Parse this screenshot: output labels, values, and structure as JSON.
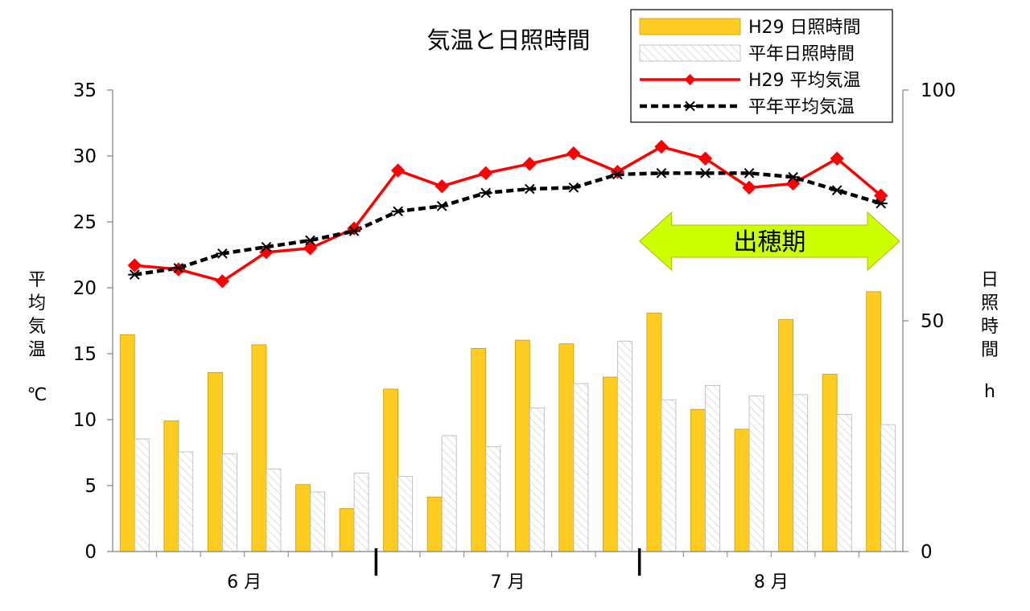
{
  "chart_data": {
    "type": "bar+line",
    "title": "気温と日照時間",
    "y_left": {
      "label_chars": [
        "平",
        "均",
        "気",
        "温"
      ],
      "unit": "℃",
      "range": [
        0,
        35
      ],
      "ticks": [
        0,
        5,
        10,
        15,
        20,
        25,
        30,
        35
      ]
    },
    "y_right": {
      "label_chars": [
        "日",
        "照",
        "時",
        "間"
      ],
      "unit": "h",
      "range": [
        0,
        100
      ],
      "ticks": [
        0,
        50,
        100
      ]
    },
    "months": [
      "6 月",
      "7 月",
      "8 月"
    ],
    "periods_per_month": 6,
    "legend_position": "top-right",
    "grid": false,
    "annotation": {
      "label": "出穂期",
      "from_period": 13,
      "to_period": 18,
      "color": "#ccff00"
    },
    "bar_series": [
      {
        "name": "H29 日照時間",
        "axis": "right",
        "color": "#ffcc22",
        "values": [
          47,
          28.3,
          38.8,
          44.8,
          14.5,
          9.3,
          35.2,
          11.8,
          44,
          45.8,
          45,
          37.8,
          51.7,
          30.8,
          26.5,
          50.3,
          38.4,
          56.3
        ]
      },
      {
        "name": "平年日照時間",
        "axis": "right",
        "color": "#ffffff",
        "pattern": "hatch",
        "values": [
          24.4,
          21.6,
          21.2,
          17.9,
          12.9,
          17,
          16.3,
          25.1,
          22.7,
          31.1,
          36.4,
          45.6,
          32.9,
          36,
          33.7,
          34,
          29.7,
          27.5
        ]
      }
    ],
    "line_series": [
      {
        "name": "H29 平均気温",
        "axis": "left",
        "color": "#ff0000",
        "marker": "diamond",
        "values": [
          21.7,
          21.4,
          20.5,
          22.7,
          23,
          24.5,
          28.9,
          27.7,
          28.7,
          29.4,
          30.2,
          28.8,
          30.7,
          29.8,
          27.6,
          27.9,
          29.8,
          27
        ]
      },
      {
        "name": "平年平均気温",
        "axis": "left",
        "color": "#000000",
        "marker": "asterisk",
        "dashed": true,
        "values": [
          21,
          21.5,
          22.6,
          23.1,
          23.6,
          24.3,
          25.8,
          26.2,
          27.2,
          27.5,
          27.6,
          28.6,
          28.7,
          28.7,
          28.7,
          28.4,
          27.4,
          26.4
        ]
      }
    ]
  }
}
